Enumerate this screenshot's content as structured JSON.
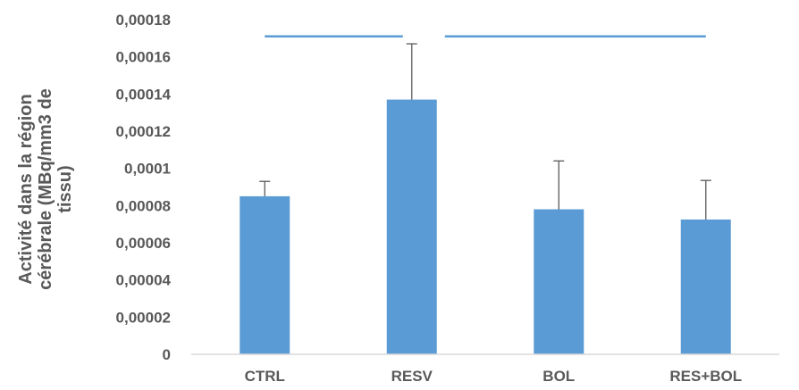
{
  "chart_data": {
    "type": "bar",
    "title": "",
    "xlabel": "",
    "ylabel_lines": [
      "Activité dans la région",
      "cérébrale (MBq/mm3 de",
      "tissu)"
    ],
    "categories": [
      "CTRL",
      "RESV",
      "BOL",
      "RES+BOL"
    ],
    "values": [
      8.5e-05,
      0.000137,
      7.8e-05,
      7.25e-05
    ],
    "error_upper": [
      9.3e-05,
      0.000167,
      0.000104,
      9.35e-05
    ],
    "ylim": [
      0,
      0.00018
    ],
    "yticks": [
      0,
      2e-05,
      4e-05,
      6e-05,
      8e-05,
      0.0001,
      0.00012,
      0.00014,
      0.00016,
      0.00018
    ],
    "ytick_labels": [
      "0",
      "0,00002",
      "0,00004",
      "0,00006",
      "0,00008",
      "0,0001",
      "0,00012",
      "0,00014",
      "0,00016",
      "0,00018"
    ],
    "significance_level": 0.000171,
    "significance_brackets": [
      {
        "from_category": "CTRL",
        "to_category": "RESV"
      },
      {
        "from_category": "RESV",
        "to_category": "RES+BOL"
      }
    ],
    "grid": false,
    "legend": "none",
    "colors": {
      "bar": "#5B9BD5",
      "error_bar": "#595959",
      "bracket": "#5B9BD5",
      "axis": "#D9D9D9",
      "text": "#595959"
    }
  }
}
